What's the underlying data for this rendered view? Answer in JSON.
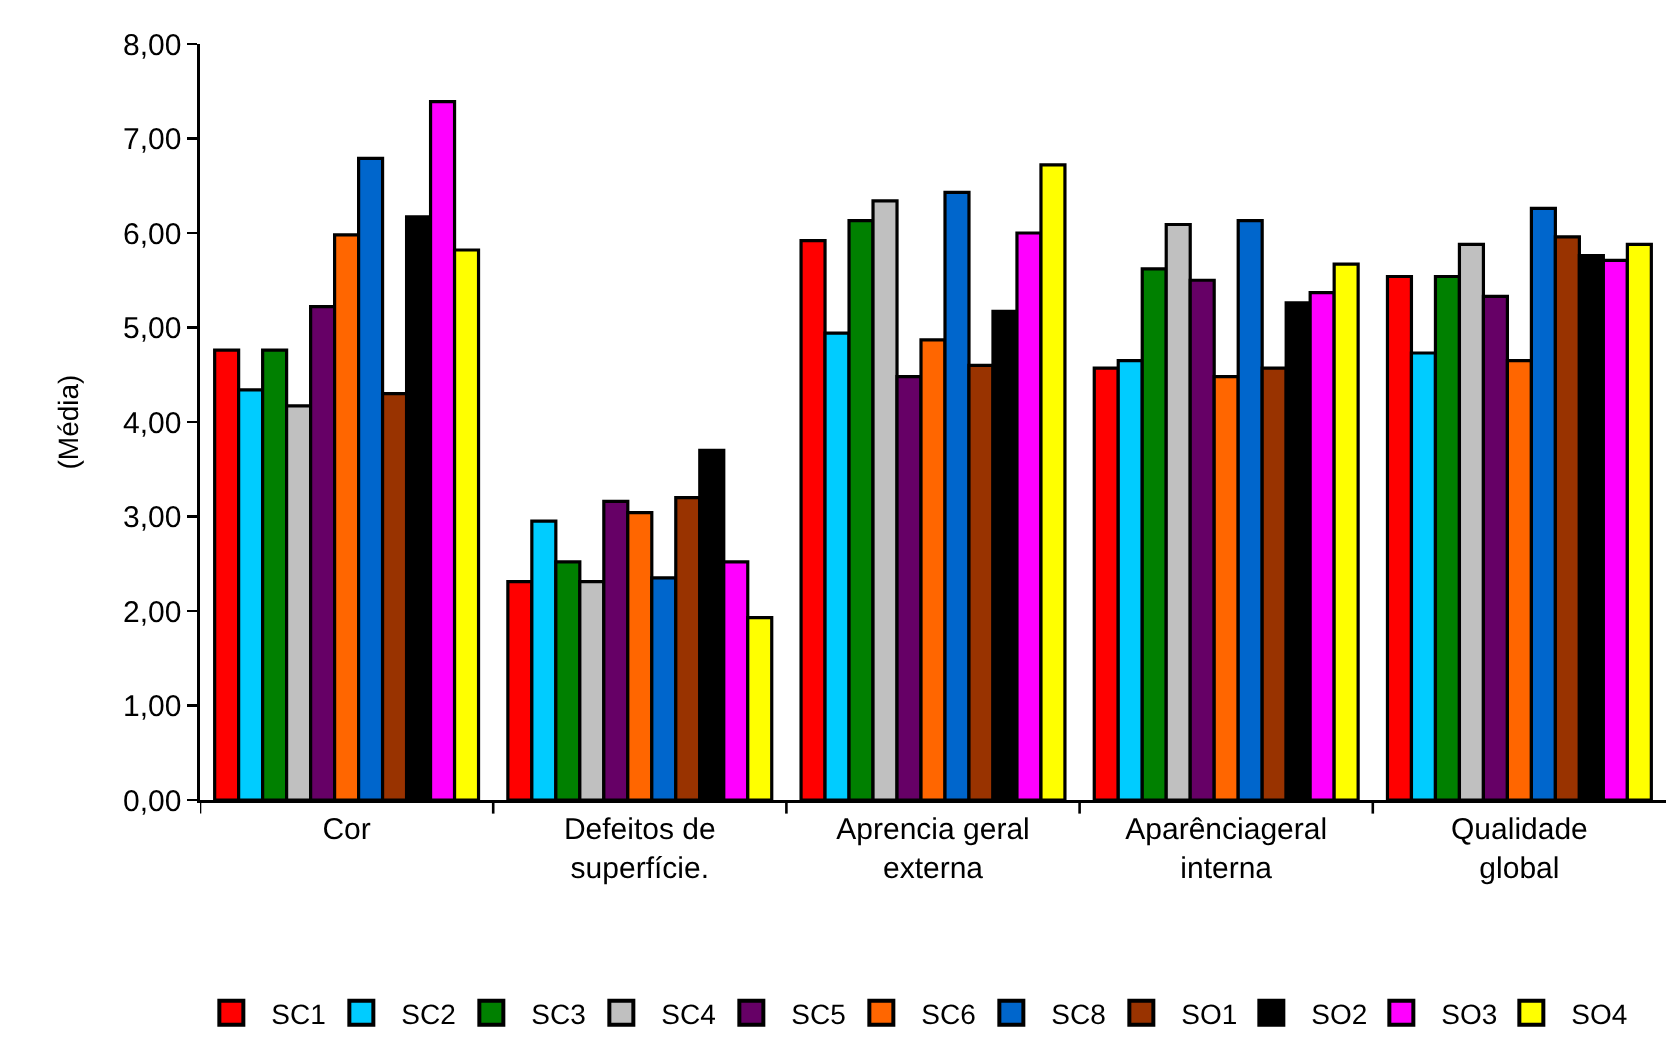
{
  "chart_data": {
    "type": "bar",
    "ylabel": "(Média)",
    "categories": [
      "Cor",
      "Defeitos de superfície.",
      "Aprencia geral externa",
      "Aparênciageral interna",
      "Qualidade global"
    ],
    "series": [
      {
        "name": "SC1",
        "color": "#ff0000",
        "values": [
          4.76,
          2.31,
          5.92,
          4.57,
          5.54
        ]
      },
      {
        "name": "SC2",
        "color": "#00ccff",
        "values": [
          4.34,
          2.95,
          4.94,
          4.65,
          4.73
        ]
      },
      {
        "name": "SC3",
        "color": "#008000",
        "values": [
          4.76,
          2.52,
          6.13,
          5.62,
          5.54
        ]
      },
      {
        "name": "SC4",
        "color": "#c0c0c0",
        "values": [
          4.17,
          2.31,
          6.34,
          6.09,
          5.88
        ]
      },
      {
        "name": "SC5",
        "color": "#660066",
        "values": [
          5.22,
          3.16,
          4.48,
          5.5,
          5.33
        ]
      },
      {
        "name": "SC6",
        "color": "#ff6600",
        "values": [
          5.98,
          3.04,
          4.87,
          4.48,
          4.65
        ]
      },
      {
        "name": "SC8",
        "color": "#0066cc",
        "values": [
          6.79,
          2.35,
          6.43,
          6.13,
          6.26
        ]
      },
      {
        "name": "SO1",
        "color": "#993300",
        "values": [
          4.3,
          3.2,
          4.6,
          4.57,
          5.96
        ]
      },
      {
        "name": "SO2",
        "color": "#000000",
        "values": [
          6.17,
          3.7,
          5.17,
          5.26,
          5.76
        ]
      },
      {
        "name": "SO3",
        "color": "#ff00ff",
        "values": [
          7.39,
          2.52,
          6.0,
          5.37,
          5.71
        ]
      },
      {
        "name": "SO4",
        "color": "#ffff00",
        "values": [
          5.82,
          1.93,
          6.72,
          5.67,
          5.88
        ]
      }
    ],
    "ylim": [
      0,
      8
    ],
    "yticks": [
      {
        "value": 0,
        "label": "0,00"
      },
      {
        "value": 1,
        "label": "1,00"
      },
      {
        "value": 2,
        "label": "2,00"
      },
      {
        "value": 3,
        "label": "3,00"
      },
      {
        "value": 4,
        "label": "4,00"
      },
      {
        "value": 5,
        "label": "5,00"
      },
      {
        "value": 6,
        "label": "6,00"
      },
      {
        "value": 7,
        "label": "7,00"
      },
      {
        "value": 8,
        "label": "8,00"
      }
    ],
    "legend": "bottom"
  }
}
